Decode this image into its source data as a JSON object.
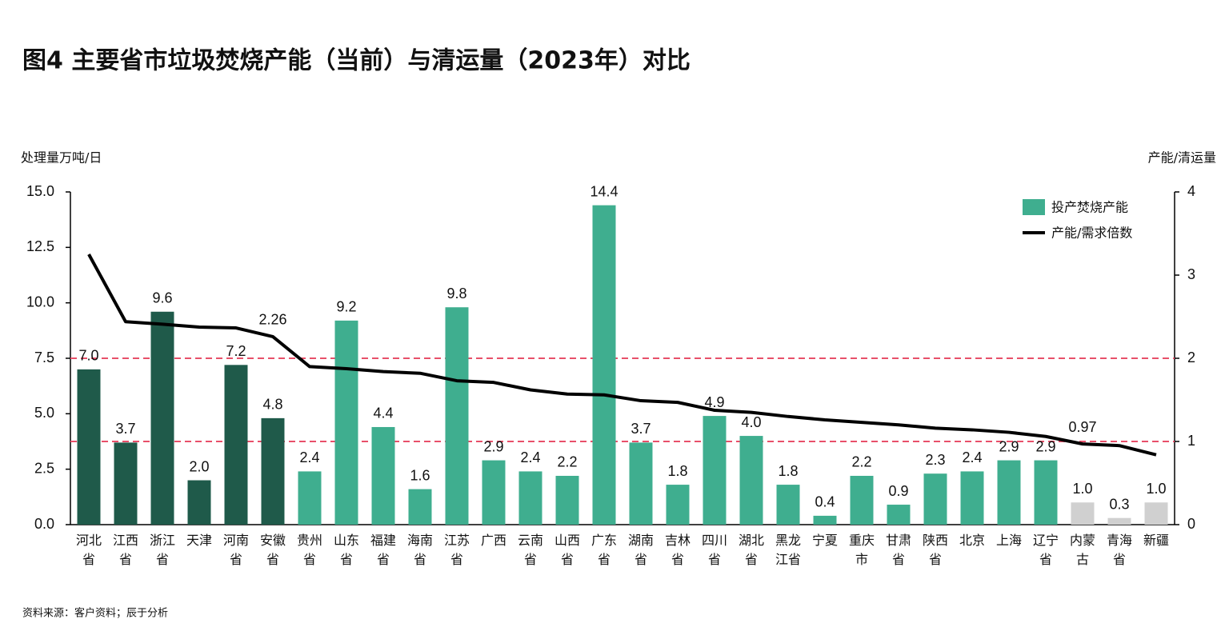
{
  "chart_data": {
    "type": "bar-line",
    "title": "图4 主要省市垃圾焚烧产能（当前）与清运量（2023年）对比",
    "y_label": "处理量万吨/日",
    "y2_label": "产能/清运量",
    "source": "资料来源：客户资料；辰于分析",
    "categories": [
      "河北省",
      "江西省",
      "浙江省",
      "天津",
      "河南省",
      "安徽省",
      "贵州省",
      "山东省",
      "福建省",
      "海南省",
      "江苏省",
      "广西",
      "云南省",
      "山西省",
      "广东省",
      "湖南省",
      "吉林省",
      "四川省",
      "湖北省",
      "黑龙江省",
      "宁夏",
      "重庆市",
      "甘肃省",
      "陕西省",
      "北京",
      "上海",
      "辽宁省",
      "内蒙古",
      "青海省",
      "新疆"
    ],
    "series": [
      {
        "name": "投产焚烧产能",
        "type": "bar",
        "color": "#3fae8f",
        "colors": [
          "#1f5a4a",
          "#1f5a4a",
          "#1f5a4a",
          "#1f5a4a",
          "#1f5a4a",
          "#1f5a4a",
          "#3fae8f",
          "#3fae8f",
          "#3fae8f",
          "#3fae8f",
          "#3fae8f",
          "#3fae8f",
          "#3fae8f",
          "#3fae8f",
          "#3fae8f",
          "#3fae8f",
          "#3fae8f",
          "#3fae8f",
          "#3fae8f",
          "#3fae8f",
          "#3fae8f",
          "#3fae8f",
          "#3fae8f",
          "#3fae8f",
          "#3fae8f",
          "#3fae8f",
          "#3fae8f",
          "#d0d0d0",
          "#d0d0d0",
          "#d0d0d0"
        ],
        "values": [
          7.0,
          3.7,
          9.6,
          2.0,
          7.2,
          4.8,
          2.4,
          9.2,
          4.4,
          1.6,
          9.8,
          2.9,
          2.4,
          2.2,
          14.4,
          3.7,
          1.8,
          4.9,
          4.0,
          1.8,
          0.4,
          2.2,
          0.9,
          2.3,
          2.4,
          2.9,
          2.9,
          1.0,
          0.3,
          1.0
        ],
        "value_labels": [
          "7.0",
          "3.7",
          "9.6",
          "2.0",
          "7.2",
          "4.8",
          "2.4",
          "9.2",
          "4.4",
          "1.6",
          "9.8",
          "2.9",
          "2.4",
          "2.2",
          "14.4",
          "3.7",
          "1.8",
          "4.9",
          "4.0",
          "1.8",
          "0.4",
          "2.2",
          "0.9",
          "2.3",
          "2.4",
          "2.9",
          "2.9",
          "1.0",
          "0.3",
          "1.0"
        ]
      },
      {
        "name": "产能/需求倍数",
        "type": "line",
        "axis": "y2",
        "color": "#000000",
        "values": [
          3.25,
          2.44,
          2.41,
          2.375,
          2.365,
          2.26,
          1.9,
          1.875,
          1.84,
          1.82,
          1.73,
          1.71,
          1.62,
          1.57,
          1.56,
          1.49,
          1.47,
          1.375,
          1.35,
          1.3,
          1.26,
          1.23,
          1.2,
          1.16,
          1.14,
          1.11,
          1.06,
          0.97,
          0.95,
          0.84
        ],
        "value_labels": [
          null,
          null,
          null,
          null,
          null,
          "2.26",
          null,
          null,
          null,
          null,
          null,
          null,
          null,
          null,
          null,
          null,
          null,
          null,
          null,
          null,
          null,
          null,
          null,
          null,
          null,
          null,
          null,
          "0.97",
          null,
          null
        ]
      }
    ],
    "ylim": [
      0,
      15
    ],
    "yticks": [
      {
        "value": 0,
        "label": "0.0"
      },
      2.5,
      {
        "value": 5,
        "label": "5.0"
      },
      7.5,
      {
        "value": 10,
        "label": "10.0"
      },
      12.5,
      {
        "value": 15,
        "label": "15.0"
      }
    ],
    "y2lim": [
      0,
      4
    ],
    "y2ticks": [
      0,
      1,
      2,
      3,
      4
    ],
    "reference_lines": {
      "axis": "y2",
      "values": [
        1,
        2
      ],
      "color": "#e8506a"
    },
    "legend": "top-right"
  }
}
